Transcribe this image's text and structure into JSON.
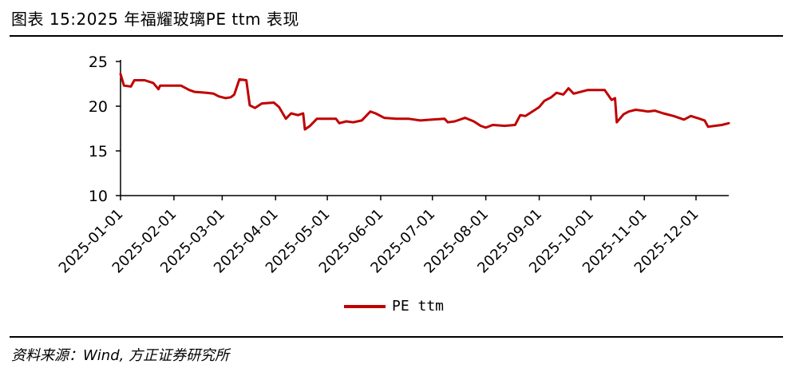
{
  "title": "图表 15:2025 年福耀玻璃PE ttm 表现",
  "source": "资料来源：Wind, 方正证券研究所",
  "colors": {
    "series": "#C00000",
    "axis": "#000000"
  },
  "chart_data": {
    "type": "line",
    "ylim": [
      10,
      25
    ],
    "yticks": [
      10,
      15,
      20,
      25
    ],
    "xlim": [
      "2025-01-01",
      "2025-12-20"
    ],
    "xticks": [
      "2025-01-01",
      "2025-02-01",
      "2025-03-01",
      "2025-04-01",
      "2025-05-01",
      "2025-06-01",
      "2025-07-01",
      "2025-08-01",
      "2025-09-01",
      "2025-10-01",
      "2025-11-01",
      "2025-12-01"
    ],
    "legend": "bottom",
    "grid": false,
    "series": [
      {
        "name": "PE ttm",
        "points": [
          [
            "2025-01-01",
            23.6
          ],
          [
            "2025-01-03",
            22.3
          ],
          [
            "2025-01-07",
            22.2
          ],
          [
            "2025-01-09",
            22.9
          ],
          [
            "2025-01-15",
            22.9
          ],
          [
            "2025-01-20",
            22.6
          ],
          [
            "2025-01-23",
            21.9
          ],
          [
            "2025-01-24",
            22.3
          ],
          [
            "2025-02-05",
            22.3
          ],
          [
            "2025-02-10",
            21.8
          ],
          [
            "2025-02-13",
            21.6
          ],
          [
            "2025-02-20",
            21.5
          ],
          [
            "2025-02-24",
            21.4
          ],
          [
            "2025-02-27",
            21.1
          ],
          [
            "2025-03-03",
            20.9
          ],
          [
            "2025-03-06",
            21.0
          ],
          [
            "2025-03-08",
            21.3
          ],
          [
            "2025-03-11",
            23.0
          ],
          [
            "2025-03-15",
            22.9
          ],
          [
            "2025-03-17",
            20.1
          ],
          [
            "2025-03-20",
            19.8
          ],
          [
            "2025-03-24",
            20.3
          ],
          [
            "2025-03-31",
            20.4
          ],
          [
            "2025-04-03",
            19.9
          ],
          [
            "2025-04-07",
            18.6
          ],
          [
            "2025-04-10",
            19.2
          ],
          [
            "2025-04-14",
            19.0
          ],
          [
            "2025-04-17",
            19.2
          ],
          [
            "2025-04-18",
            17.4
          ],
          [
            "2025-04-21",
            17.8
          ],
          [
            "2025-04-25",
            18.6
          ],
          [
            "2025-05-06",
            18.6
          ],
          [
            "2025-05-08",
            18.1
          ],
          [
            "2025-05-12",
            18.3
          ],
          [
            "2025-05-16",
            18.2
          ],
          [
            "2025-05-21",
            18.4
          ],
          [
            "2025-05-26",
            19.4
          ],
          [
            "2025-05-29",
            19.2
          ],
          [
            "2025-06-03",
            18.7
          ],
          [
            "2025-06-10",
            18.6
          ],
          [
            "2025-06-17",
            18.6
          ],
          [
            "2025-06-24",
            18.4
          ],
          [
            "2025-07-01",
            18.5
          ],
          [
            "2025-07-08",
            18.6
          ],
          [
            "2025-07-10",
            18.2
          ],
          [
            "2025-07-14",
            18.3
          ],
          [
            "2025-07-20",
            18.7
          ],
          [
            "2025-07-25",
            18.3
          ],
          [
            "2025-07-29",
            17.8
          ],
          [
            "2025-08-01",
            17.6
          ],
          [
            "2025-08-05",
            17.9
          ],
          [
            "2025-08-12",
            17.8
          ],
          [
            "2025-08-18",
            17.9
          ],
          [
            "2025-08-21",
            19.0
          ],
          [
            "2025-08-24",
            18.9
          ],
          [
            "2025-08-28",
            19.4
          ],
          [
            "2025-09-01",
            19.9
          ],
          [
            "2025-09-04",
            20.6
          ],
          [
            "2025-09-08",
            21.0
          ],
          [
            "2025-09-11",
            21.5
          ],
          [
            "2025-09-15",
            21.3
          ],
          [
            "2025-09-18",
            22.0
          ],
          [
            "2025-09-21",
            21.4
          ],
          [
            "2025-09-25",
            21.6
          ],
          [
            "2025-09-29",
            21.8
          ],
          [
            "2025-10-09",
            21.8
          ],
          [
            "2025-10-13",
            20.7
          ],
          [
            "2025-10-15",
            20.9
          ],
          [
            "2025-10-16",
            18.2
          ],
          [
            "2025-10-20",
            19.1
          ],
          [
            "2025-10-23",
            19.4
          ],
          [
            "2025-10-27",
            19.6
          ],
          [
            "2025-10-31",
            19.5
          ],
          [
            "2025-11-03",
            19.4
          ],
          [
            "2025-11-07",
            19.5
          ],
          [
            "2025-11-12",
            19.2
          ],
          [
            "2025-11-18",
            18.9
          ],
          [
            "2025-11-24",
            18.5
          ],
          [
            "2025-11-28",
            18.9
          ],
          [
            "2025-12-03",
            18.6
          ],
          [
            "2025-12-06",
            18.4
          ],
          [
            "2025-12-08",
            17.7
          ],
          [
            "2025-12-12",
            17.8
          ],
          [
            "2025-12-16",
            17.9
          ],
          [
            "2025-12-20",
            18.1
          ]
        ]
      }
    ]
  }
}
